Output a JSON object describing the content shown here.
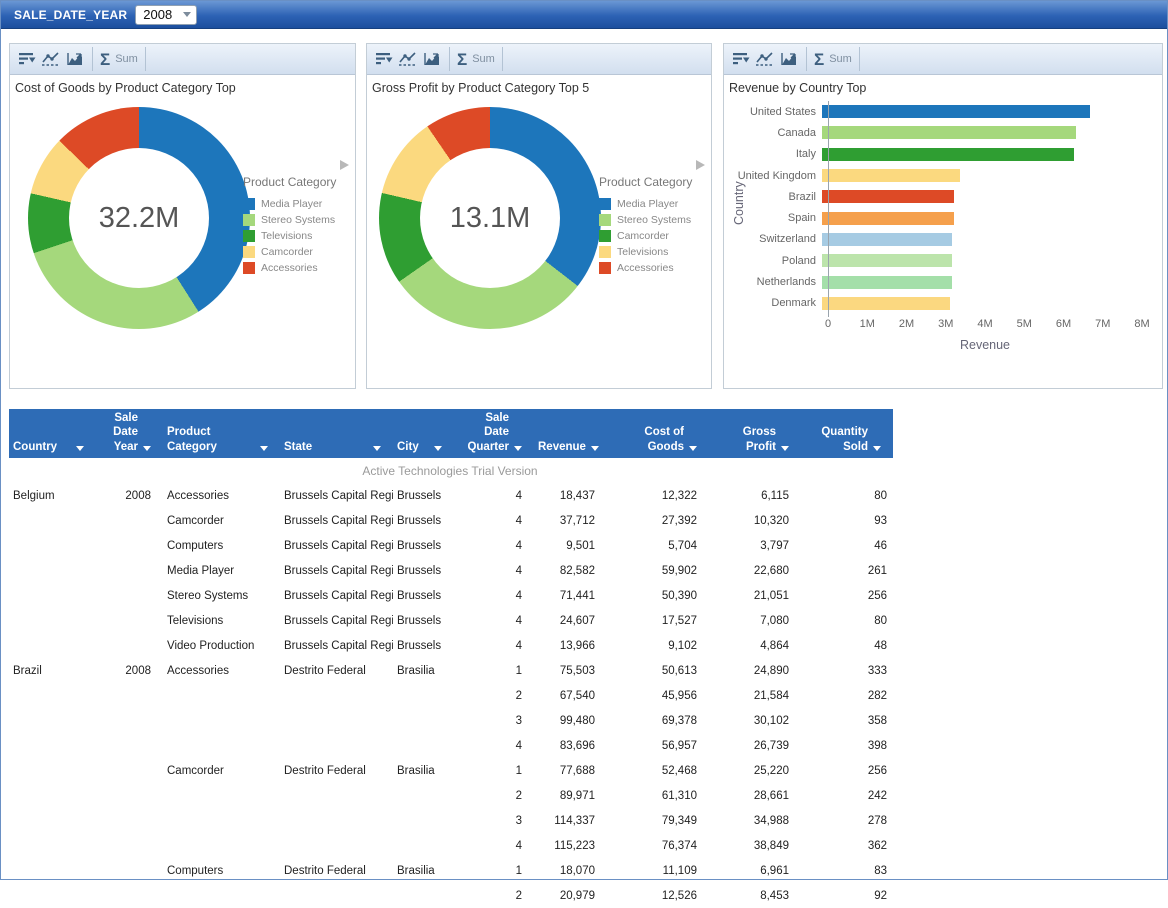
{
  "topbar": {
    "filter_label": "SALE_DATE_YEAR",
    "filter_value": "2008"
  },
  "panel_toolbar": {
    "sum_label": "Sum"
  },
  "chart_data": [
    {
      "type": "donut",
      "title": "Cost of Goods by Product Category Top",
      "center_label": "32.2M",
      "legend_title": "Product Category",
      "total_millions": 32.2,
      "slices": [
        {
          "label": "Media Player",
          "value_millions": 13.2,
          "color": "#1d76bb"
        },
        {
          "label": "Stereo Systems",
          "value_millions": 9.3,
          "color": "#a5d87c"
        },
        {
          "label": "Televisions",
          "value_millions": 2.8,
          "color": "#2f9e32"
        },
        {
          "label": "Camcorder",
          "value_millions": 2.8,
          "color": "#fbd97f"
        },
        {
          "label": "Accessories",
          "value_millions": 4.1,
          "color": "#dd4a26"
        }
      ]
    },
    {
      "type": "donut",
      "title": "Gross Profit by Product Category Top 5",
      "center_label": "13.1M",
      "legend_title": "Product Category",
      "total_millions": 13.1,
      "slices": [
        {
          "label": "Media Player",
          "value_millions": 4.65,
          "color": "#1d76bb"
        },
        {
          "label": "Stereo Systems",
          "value_millions": 3.9,
          "color": "#a5d87c"
        },
        {
          "label": "Camcorder",
          "value_millions": 1.75,
          "color": "#2f9e32"
        },
        {
          "label": "Televisions",
          "value_millions": 1.55,
          "color": "#fbd97f"
        },
        {
          "label": "Accessories",
          "value_millions": 1.25,
          "color": "#dd4a26"
        }
      ]
    },
    {
      "type": "bar",
      "orientation": "horizontal",
      "title": "Revenue by Country Top",
      "xlabel": "Revenue",
      "ylabel": "Country",
      "xlim": [
        0,
        8000000
      ],
      "xticks": [
        "0",
        "1M",
        "2M",
        "3M",
        "4M",
        "5M",
        "6M",
        "7M",
        "8M"
      ],
      "grid": false,
      "categories": [
        "United States",
        "Canada",
        "Italy",
        "United Kingdom",
        "Brazil",
        "Spain",
        "Switzerland",
        "Poland",
        "Netherlands",
        "Denmark"
      ],
      "values": [
        6700000,
        6350000,
        6300000,
        3450000,
        3300000,
        3300000,
        3250000,
        3250000,
        3250000,
        3200000
      ],
      "colors": [
        "#1d76bb",
        "#a5d87c",
        "#2f9e32",
        "#fbd97f",
        "#dd4a26",
        "#f5a04c",
        "#a6cbe3",
        "#bce4ab",
        "#a4dfa9",
        "#fbd880"
      ]
    }
  ],
  "table": {
    "watermark": "Active Technologies Trial Version",
    "columns": [
      {
        "lines": [
          "Country"
        ]
      },
      {
        "lines": [
          "Sale Date",
          "Year"
        ]
      },
      {
        "lines": [
          "Product Category"
        ]
      },
      {
        "lines": [
          "State"
        ]
      },
      {
        "lines": [
          "City"
        ]
      },
      {
        "lines": [
          "Sale Date",
          "Quarter"
        ]
      },
      {
        "lines": [
          "Revenue"
        ]
      },
      {
        "lines": [
          "Cost of Goods"
        ]
      },
      {
        "lines": [
          "Gross Profit"
        ]
      },
      {
        "lines": [
          "Quantity Sold"
        ]
      }
    ],
    "rows": [
      [
        "Belgium",
        "2008",
        "Accessories",
        "Brussels Capital Region",
        "Brussels",
        "4",
        "18,437",
        "12,322",
        "6,115",
        "80"
      ],
      [
        "",
        "",
        "Camcorder",
        "Brussels Capital Region",
        "Brussels",
        "4",
        "37,712",
        "27,392",
        "10,320",
        "93"
      ],
      [
        "",
        "",
        "Computers",
        "Brussels Capital Region",
        "Brussels",
        "4",
        "9,501",
        "5,704",
        "3,797",
        "46"
      ],
      [
        "",
        "",
        "Media Player",
        "Brussels Capital Region",
        "Brussels",
        "4",
        "82,582",
        "59,902",
        "22,680",
        "261"
      ],
      [
        "",
        "",
        "Stereo Systems",
        "Brussels Capital Region",
        "Brussels",
        "4",
        "71,441",
        "50,390",
        "21,051",
        "256"
      ],
      [
        "",
        "",
        "Televisions",
        "Brussels Capital Region",
        "Brussels",
        "4",
        "24,607",
        "17,527",
        "7,080",
        "80"
      ],
      [
        "",
        "",
        "Video Production",
        "Brussels Capital Region",
        "Brussels",
        "4",
        "13,966",
        "9,102",
        "4,864",
        "48"
      ],
      [
        "Brazil",
        "2008",
        "Accessories",
        "Destrito Federal",
        "Brasilia",
        "1",
        "75,503",
        "50,613",
        "24,890",
        "333"
      ],
      [
        "",
        "",
        "",
        "",
        "",
        "2",
        "67,540",
        "45,956",
        "21,584",
        "282"
      ],
      [
        "",
        "",
        "",
        "",
        "",
        "3",
        "99,480",
        "69,378",
        "30,102",
        "358"
      ],
      [
        "",
        "",
        "",
        "",
        "",
        "4",
        "83,696",
        "56,957",
        "26,739",
        "398"
      ],
      [
        "",
        "",
        "Camcorder",
        "Destrito Federal",
        "Brasilia",
        "1",
        "77,688",
        "52,468",
        "25,220",
        "256"
      ],
      [
        "",
        "",
        "",
        "",
        "",
        "2",
        "89,971",
        "61,310",
        "28,661",
        "242"
      ],
      [
        "",
        "",
        "",
        "",
        "",
        "3",
        "114,337",
        "79,349",
        "34,988",
        "278"
      ],
      [
        "",
        "",
        "",
        "",
        "",
        "4",
        "115,223",
        "76,374",
        "38,849",
        "362"
      ],
      [
        "",
        "",
        "Computers",
        "Destrito Federal",
        "Brasilia",
        "1",
        "18,070",
        "11,109",
        "6,961",
        "83"
      ],
      [
        "",
        "",
        "",
        "",
        "",
        "2",
        "20,979",
        "12,526",
        "8,453",
        "92"
      ]
    ]
  }
}
